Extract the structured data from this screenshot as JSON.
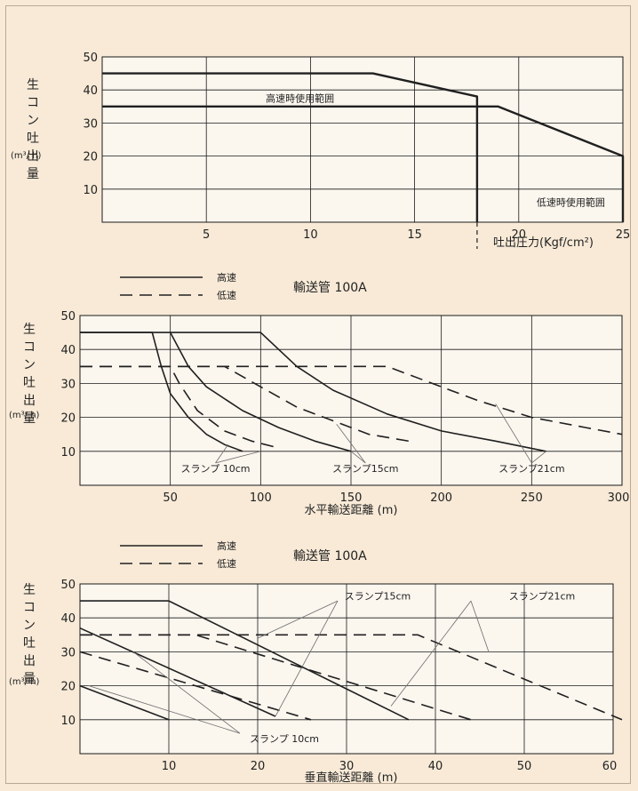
{
  "colors": {
    "background": "#f8ead7",
    "plot_area": "#fbf6ee",
    "grid": "#1a1a1a",
    "line": "#202020",
    "annotation_line": "#6c6c6c"
  },
  "chart_data": [
    {
      "type": "line",
      "ylabel": "生コン吐出量",
      "yunit": "(m³/ h)",
      "xlabel": "吐出圧力(Kgf/cm²)",
      "xlim": [
        0,
        25
      ],
      "ylim": [
        0,
        50
      ],
      "xticks": [
        5,
        10,
        15,
        20,
        25
      ],
      "yticks": [
        10,
        20,
        30,
        40,
        50
      ],
      "grid": true,
      "series": [
        {
          "name": "高速時使用範囲",
          "style": "solid",
          "points": [
            [
              0,
              45
            ],
            [
              13,
              45
            ],
            [
              18,
              38
            ],
            [
              18,
              0
            ]
          ]
        },
        {
          "name": "低速時使用範囲",
          "style": "solid",
          "points": [
            [
              0,
              35
            ],
            [
              19,
              35
            ],
            [
              25,
              20
            ],
            [
              25,
              0
            ]
          ]
        }
      ],
      "annotations": [
        {
          "text": "高速時使用範囲",
          "x": 9.5,
          "y": 37.5
        },
        {
          "text": "低速時使用範囲",
          "x": 22.5,
          "y": 6
        }
      ]
    },
    {
      "type": "line",
      "legend": {
        "solid": "高速",
        "dashed": "低速"
      },
      "pipe_label": "輸送管 100A",
      "ylabel": "生コン吐出量",
      "yunit": "(m³/ h)",
      "xlabel": "水平輸送距離 (m)",
      "xlim": [
        0,
        300
      ],
      "ylim": [
        0,
        50
      ],
      "xticks": [
        50,
        100,
        150,
        200,
        250,
        300
      ],
      "yticks": [
        10,
        20,
        30,
        40,
        50
      ],
      "grid": true,
      "series": [
        {
          "style": "solid",
          "points": [
            [
              0,
              45
            ],
            [
              40,
              45
            ],
            [
              45,
              35
            ],
            [
              50,
              27
            ],
            [
              60,
              20
            ],
            [
              70,
              15
            ],
            [
              80,
              12
            ],
            [
              90,
              10
            ]
          ]
        },
        {
          "style": "solid",
          "points": [
            [
              50,
              45
            ],
            [
              60,
              35
            ],
            [
              70,
              29
            ],
            [
              90,
              22
            ],
            [
              110,
              17
            ],
            [
              130,
              13
            ],
            [
              150,
              10
            ]
          ]
        },
        {
          "style": "solid",
          "points": [
            [
              0,
              45
            ],
            [
              100,
              45
            ],
            [
              120,
              35
            ],
            [
              140,
              28
            ],
            [
              170,
              21
            ],
            [
              200,
              16
            ],
            [
              230,
              13
            ],
            [
              258,
              10
            ]
          ]
        },
        {
          "style": "dashed",
          "points": [
            [
              0,
              35
            ],
            [
              50,
              35
            ],
            [
              55,
              30
            ],
            [
              65,
              22
            ],
            [
              80,
              16
            ],
            [
              95,
              13
            ],
            [
              110,
              11
            ]
          ]
        },
        {
          "style": "dashed",
          "points": [
            [
              0,
              35
            ],
            [
              80,
              35
            ],
            [
              100,
              29
            ],
            [
              120,
              23
            ],
            [
              140,
              19
            ],
            [
              160,
              15
            ],
            [
              182,
              13
            ]
          ]
        },
        {
          "style": "dashed",
          "points": [
            [
              0,
              35
            ],
            [
              170,
              35
            ],
            [
              195,
              30
            ],
            [
              220,
              25
            ],
            [
              250,
              20
            ],
            [
              280,
              17
            ],
            [
              300,
              15
            ]
          ]
        }
      ],
      "annotations": [
        {
          "text": "スランプ 10cm",
          "x": 75,
          "y": 5
        },
        {
          "text": "スランプ15cm",
          "x": 158,
          "y": 5
        },
        {
          "text": "スランプ21cm",
          "x": 250,
          "y": 5
        }
      ]
    },
    {
      "type": "line",
      "legend": {
        "solid": "高速",
        "dashed": "低速"
      },
      "pipe_label": "輸送管 100A",
      "ylabel": "生コン吐出量",
      "yunit": "(m³/ h)",
      "xlabel": "垂直輸送距離 (m)",
      "xlim": [
        0,
        60
      ],
      "ylim": [
        0,
        50
      ],
      "xticks": [
        10,
        20,
        30,
        40,
        50,
        60
      ],
      "yticks": [
        10,
        20,
        30,
        40,
        50
      ],
      "grid": true,
      "series": [
        {
          "style": "solid",
          "points": [
            [
              0,
              20
            ],
            [
              10,
              10
            ]
          ]
        },
        {
          "style": "solid",
          "points": [
            [
              0,
              37
            ],
            [
              22,
              11
            ]
          ]
        },
        {
          "style": "solid",
          "points": [
            [
              0,
              45
            ],
            [
              10,
              45
            ],
            [
              37,
              10
            ]
          ]
        },
        {
          "style": "dashed",
          "points": [
            [
              0,
              30
            ],
            [
              26,
              10
            ]
          ]
        },
        {
          "style": "dashed",
          "points": [
            [
              0,
              35
            ],
            [
              13,
              35
            ],
            [
              44,
              10
            ]
          ]
        },
        {
          "style": "dashed",
          "points": [
            [
              0,
              35
            ],
            [
              38,
              35
            ],
            [
              61,
              10
            ]
          ]
        }
      ],
      "annotations": [
        {
          "text": "スランプ15cm",
          "x": 33.5,
          "y": 46.5
        },
        {
          "text": "スランプ21cm",
          "x": 52,
          "y": 46.5
        },
        {
          "text": "スランプ 10cm",
          "x": 23,
          "y": 4.5
        }
      ]
    }
  ]
}
